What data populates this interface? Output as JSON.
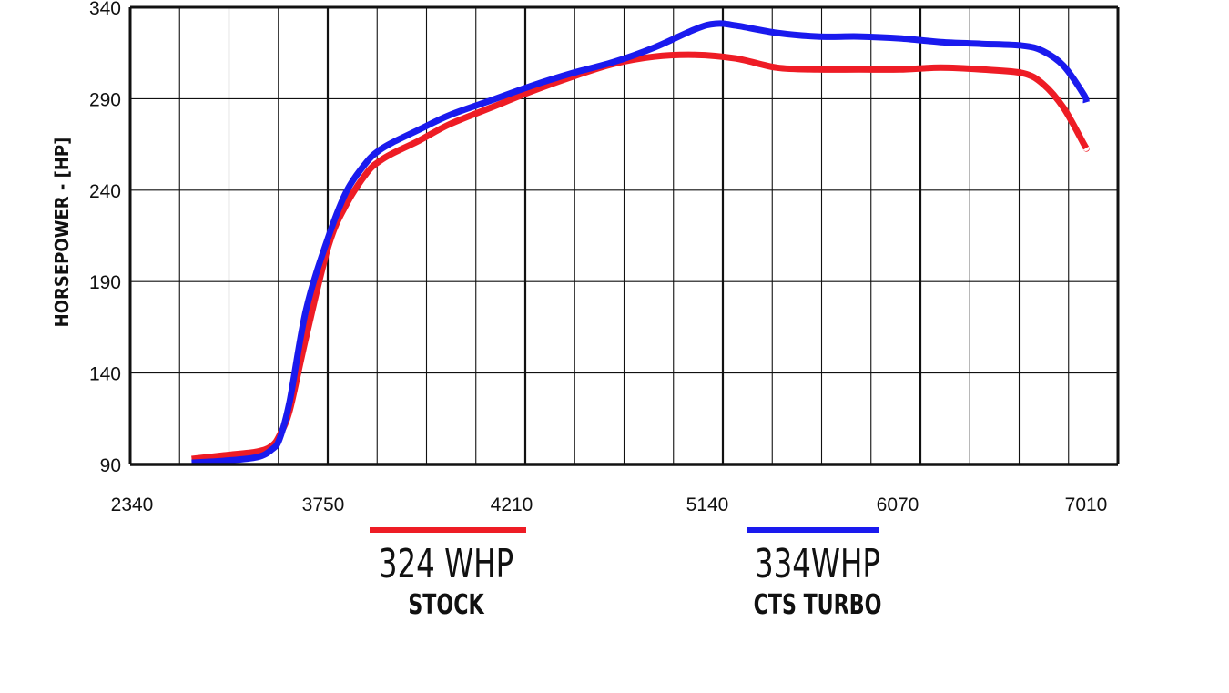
{
  "chart_data": {
    "type": "line",
    "ylabel": "HORSEPOWER - [HP]",
    "xlabel": "",
    "ylim": [
      90,
      340
    ],
    "y_ticks": [
      90,
      140,
      190,
      240,
      290,
      340
    ],
    "x_tick_labels": [
      "2340",
      "3750",
      "4210",
      "5140",
      "6070",
      "7010"
    ],
    "grid": true,
    "series": [
      {
        "name": "STOCK",
        "legend_value": "324 WHP",
        "color": "#ee1c25",
        "x": [
          2640,
          2800,
          2960,
          3030,
          3070,
          3120,
          3200,
          3310,
          3400,
          3500,
          3560,
          3620,
          3750,
          3900,
          4100,
          4300,
          4500,
          4700,
          4900,
          5100,
          5300,
          5500,
          5700,
          5900,
          6100,
          6300,
          6500,
          6700,
          6800,
          6900,
          7000,
          7010
        ],
        "y": [
          93,
          95,
          97,
          100,
          106,
          120,
          160,
          210,
          233,
          250,
          256,
          260,
          267,
          276,
          285,
          294,
          302,
          309,
          313,
          314,
          312,
          307,
          306,
          306,
          306,
          307,
          306,
          304,
          298,
          285,
          265,
          263
        ]
      },
      {
        "name": "CTS TURBO",
        "legend_value": "334WHP",
        "color": "#1a1aee",
        "x": [
          2640,
          2800,
          2960,
          3030,
          3070,
          3120,
          3200,
          3310,
          3400,
          3500,
          3560,
          3620,
          3750,
          3900,
          4100,
          4300,
          4500,
          4700,
          4900,
          5100,
          5200,
          5300,
          5500,
          5700,
          5900,
          6100,
          6300,
          6500,
          6700,
          6800,
          6900,
          7000,
          7010
        ],
        "y": [
          91,
          92,
          94,
          98,
          104,
          125,
          175,
          215,
          240,
          256,
          262,
          266,
          273,
          281,
          289,
          297,
          304,
          310,
          318,
          328,
          331,
          330,
          326,
          324,
          324,
          323,
          321,
          320,
          319,
          316,
          308,
          292,
          288
        ]
      }
    ]
  }
}
